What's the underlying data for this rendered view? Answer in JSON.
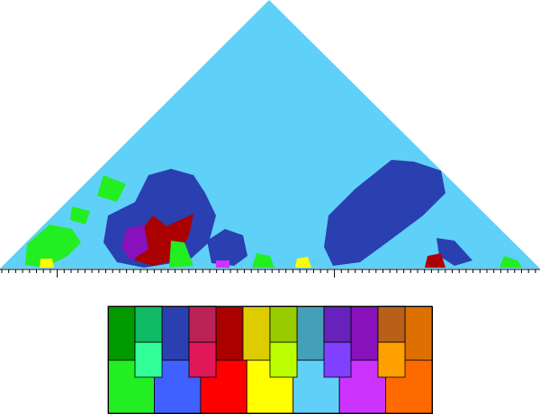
{
  "keyscape": {
    "background": "#5fd0f8"
  },
  "legend": {
    "upper": [
      "#009900",
      "#11bb66",
      "#2a3fb0",
      "#bb2255",
      "#aa0000",
      "#ddcc00",
      "#99cc00",
      "#44a0b8",
      "#6622bb",
      "#8811bb",
      "#b8601a",
      "#dd7000"
    ],
    "white_keys": [
      "#22ee22",
      "#4060ff",
      "#ff0000",
      "#ffff00",
      "#60d0f8",
      "#cc33ff",
      "#ff6a00"
    ],
    "black_keys_lower": [
      "#33ff99",
      "#e0185a",
      "#bbff00",
      "#8040ff",
      "#ffa000"
    ]
  }
}
